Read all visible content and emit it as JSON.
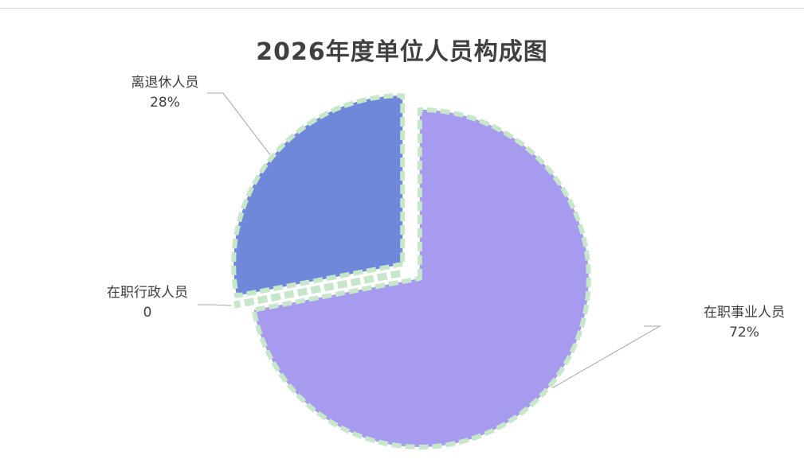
{
  "chart_data": {
    "type": "pie",
    "title": "2026年度单位人员构成图",
    "slices": [
      {
        "name": "在职事业人员",
        "value": 72,
        "display": "72%",
        "color": "#a79bef"
      },
      {
        "name": "在职行政人员",
        "value": 0,
        "display": "0",
        "color": "#c6e7c9"
      },
      {
        "name": "离退休人员",
        "value": 28,
        "display": "28%",
        "color": "#6f88d9"
      }
    ],
    "border_color": "#c6e7c9",
    "label_line_color": "#a6a6a6"
  }
}
